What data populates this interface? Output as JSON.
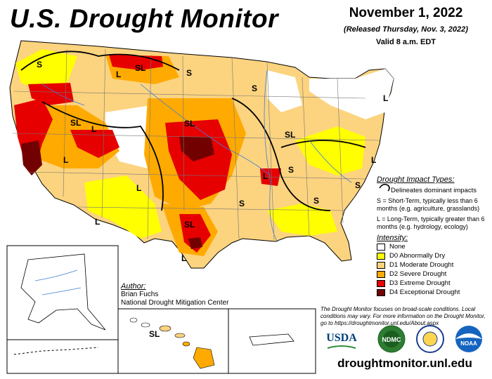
{
  "header": {
    "title": "U.S. Drought Monitor",
    "date": "November 1, 2022",
    "released": "(Released Thursday, Nov. 3, 2022)",
    "valid": "Valid 8 a.m. EDT"
  },
  "map_labels": [
    "S",
    "L",
    "SL",
    "S",
    "S",
    "SL",
    "SL",
    "L",
    "L",
    "SL",
    "S",
    "L",
    "L",
    "S",
    "S",
    "L",
    "SL",
    "L",
    "L",
    "S",
    "L",
    "SL"
  ],
  "legend": {
    "impact_title": "Drought Impact Types:",
    "impact_line": "Delineates dominant impacts",
    "short_term": "S = Short-Term, typically less than 6 months (e.g. agriculture, grasslands)",
    "long_term": "L = Long-Term, typically greater than 6 months (e.g. hydrology, ecology)",
    "intensity_title": "Intensity:",
    "items": [
      {
        "label": "None",
        "color": "#ffffff"
      },
      {
        "label": "D0 Abnormally Dry",
        "color": "#ffff00"
      },
      {
        "label": "D1 Moderate Drought",
        "color": "#fcd37f"
      },
      {
        "label": "D2 Severe Drought",
        "color": "#ffaa00"
      },
      {
        "label": "D3 Extreme Drought",
        "color": "#e60000"
      },
      {
        "label": "D4 Exceptional Drought",
        "color": "#730000"
      }
    ]
  },
  "author": {
    "label": "Author:",
    "name": "Brian Fuchs",
    "org": "National Drought Mitigation Center"
  },
  "disclaimer": "The Drought Monitor focuses on broad-scale conditions. Local conditions may vary. For more information on the Drought Monitor, go to https://droughtmonitor.unl.edu/About.aspx",
  "logos": {
    "usda": "USDA",
    "ndmc": "NDMC",
    "noaa": "NOAA"
  },
  "url": "droughtmonitor.unl.edu"
}
